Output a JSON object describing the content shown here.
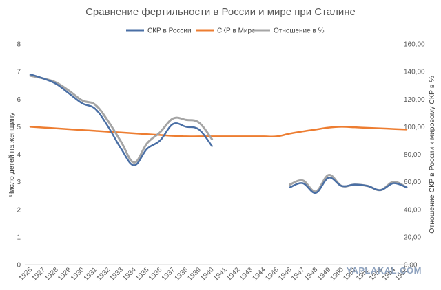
{
  "chart_data": {
    "type": "line",
    "title": "Сравнение фертильности в России и мире при Сталине",
    "ylabel": "Число детей на женщину",
    "y2label": "Отношение СКР в России  к мировому СКР в %",
    "ylim": [
      0,
      8
    ],
    "y2lim": [
      0,
      160
    ],
    "yticks": [
      "0",
      "1",
      "2",
      "3",
      "4",
      "5",
      "6",
      "7",
      "8"
    ],
    "y2ticks": [
      "0,00",
      "20,00",
      "40,00",
      "60,00",
      "80,00",
      "100,00",
      "120,00",
      "140,00",
      "160,00"
    ],
    "x": [
      1926,
      1927,
      1928,
      1929,
      1930,
      1931,
      1932,
      1933,
      1934,
      1935,
      1936,
      1937,
      1938,
      1939,
      1940,
      1941,
      1942,
      1943,
      1944,
      1945,
      1946,
      1947,
      1948,
      1949,
      1950,
      1951,
      1952,
      1953,
      1954,
      1955
    ],
    "xticks": [
      "1926",
      "1927",
      "1928",
      "1929",
      "1930",
      "1931",
      "1932",
      "1933",
      "1934",
      "1935",
      "1936",
      "1937",
      "1938",
      "1939",
      "1940",
      "1941",
      "1942",
      "1943",
      "1944",
      "1945",
      "1946",
      "1947",
      "1948",
      "1949",
      "1950",
      "1951",
      "1952",
      "1953",
      "1954",
      "1955"
    ],
    "legend_position": "top",
    "series": [
      {
        "name": "СКР в России",
        "axis": "left",
        "color": "#4a6fa5",
        "values": [
          6.9,
          6.75,
          6.55,
          6.2,
          5.85,
          5.65,
          5.0,
          4.2,
          3.6,
          4.2,
          4.5,
          5.1,
          5.0,
          4.9,
          4.3,
          null,
          null,
          null,
          null,
          null,
          2.8,
          2.95,
          2.6,
          3.15,
          2.85,
          2.9,
          2.85,
          2.7,
          2.95,
          2.8
        ]
      },
      {
        "name": "СКР в Мире",
        "axis": "left",
        "color": "#ed7d31",
        "values": [
          5.0,
          4.97,
          4.94,
          4.91,
          4.88,
          4.85,
          4.82,
          4.79,
          4.76,
          4.73,
          4.7,
          4.67,
          4.65,
          4.65,
          4.65,
          4.65,
          4.65,
          4.65,
          4.65,
          4.65,
          4.75,
          4.83,
          4.9,
          4.97,
          5.0,
          4.98,
          4.96,
          4.94,
          4.92,
          4.9
        ]
      },
      {
        "name": "Отношение в %",
        "axis": "right",
        "color": "#a5a5a5",
        "values": [
          137.0,
          135.0,
          132.0,
          126.0,
          119.0,
          116.0,
          104.0,
          89.0,
          74.0,
          88.0,
          96.0,
          106.0,
          105.0,
          103.0,
          91.0,
          null,
          null,
          null,
          null,
          null,
          58.0,
          61.0,
          53.0,
          65.0,
          57.0,
          58.0,
          57.0,
          54.0,
          60.0,
          56.0
        ]
      }
    ]
  },
  "watermark": "YAPLAKAL.COM"
}
